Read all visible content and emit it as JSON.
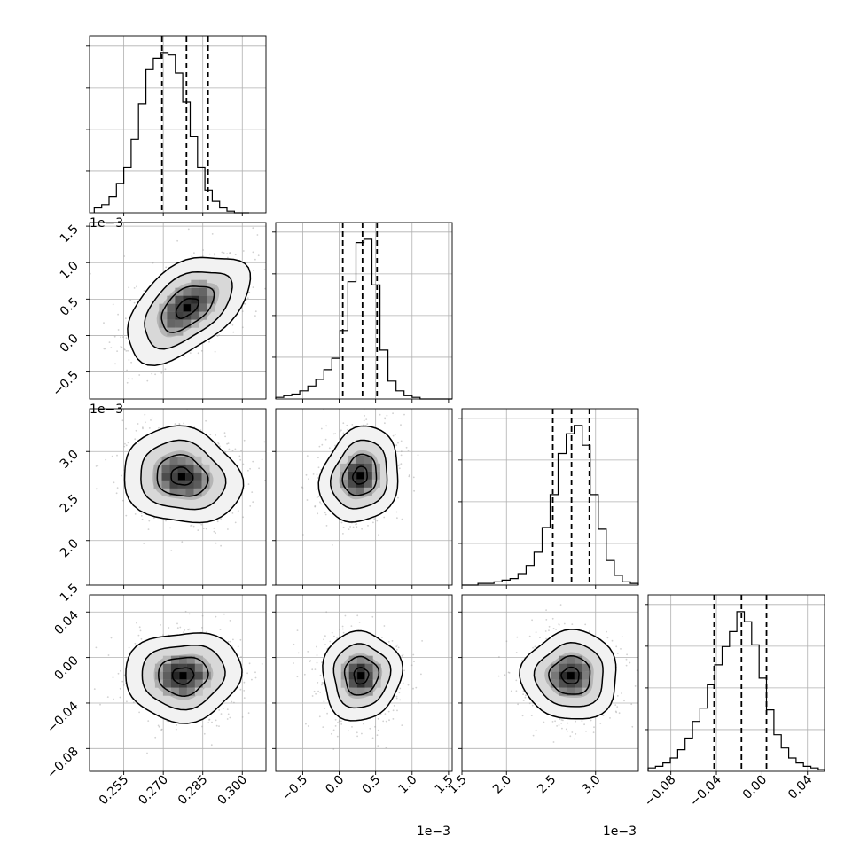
{
  "chart_data": {
    "type": "corner",
    "grid": true,
    "parameters": [
      {
        "range": [
          0.242,
          0.309
        ],
        "ticks": [
          0.255,
          0.27,
          0.285,
          0.3
        ],
        "tick_labels": [
          "0.255",
          "0.270",
          "0.285",
          "0.300"
        ],
        "offset_label": "",
        "quantiles": [
          0.2695,
          0.2788,
          0.287
        ],
        "bins": [
          0.2438,
          0.2466,
          0.2494,
          0.2522,
          0.255,
          0.2578,
          0.2606,
          0.2634,
          0.2662,
          0.269,
          0.2718,
          0.2746,
          0.2774,
          0.2802,
          0.283,
          0.2858,
          0.2886,
          0.2914,
          0.2942,
          0.297,
          0.2998,
          0.3026
        ],
        "hist": [
          3,
          5,
          10,
          18,
          28,
          45,
          67,
          88,
          95,
          98,
          97,
          86,
          68,
          47,
          28,
          14,
          7,
          3,
          1,
          0,
          0
        ]
      },
      {
        "range": [
          -0.87,
          1.55
        ],
        "ticks": [
          -0.5,
          0.0,
          0.5,
          1.0,
          1.5
        ],
        "tick_labels": [
          "−0.5",
          "0.0",
          "0.5",
          "1.0",
          "1.5"
        ],
        "offset_label": "1e−3",
        "quantiles": [
          0.05,
          0.32,
          0.52
        ],
        "bins": [
          -0.87,
          -0.76,
          -0.65,
          -0.54,
          -0.43,
          -0.32,
          -0.21,
          -0.1,
          0.01,
          0.12,
          0.23,
          0.34,
          0.45,
          0.56,
          0.67,
          0.78,
          0.89,
          1.0,
          1.11,
          1.22,
          1.33,
          1.44,
          1.55
        ],
        "hist": [
          1,
          2,
          3,
          5,
          8,
          12,
          18,
          25,
          42,
          72,
          96,
          98,
          70,
          30,
          11,
          5,
          2,
          1,
          0,
          0,
          0,
          0
        ]
      },
      {
        "range": [
          1.5,
          3.48
        ],
        "ticks": [
          1.5,
          2.0,
          2.5,
          3.0
        ],
        "tick_labels": [
          "1.5",
          "2.0",
          "2.5",
          "3.0"
        ],
        "offset_label": "1e−3",
        "quantiles": [
          2.52,
          2.73,
          2.93
        ],
        "bins": [
          1.5,
          1.59,
          1.68,
          1.77,
          1.86,
          1.95,
          2.04,
          2.13,
          2.22,
          2.31,
          2.4,
          2.49,
          2.58,
          2.67,
          2.76,
          2.85,
          2.94,
          3.03,
          3.12,
          3.21,
          3.3,
          3.39,
          3.48
        ],
        "hist": [
          0,
          0,
          1,
          1,
          2,
          3,
          4,
          7,
          12,
          20,
          35,
          55,
          80,
          92,
          97,
          85,
          55,
          34,
          15,
          6,
          2,
          1
        ]
      },
      {
        "range": [
          -0.1,
          0.055
        ],
        "ticks": [
          -0.08,
          -0.04,
          0.0,
          0.04
        ],
        "tick_labels": [
          "−0.08",
          "−0.04",
          "0.00",
          "0.04"
        ],
        "offset_label": "",
        "quantiles": [
          -0.042,
          -0.018,
          0.004
        ],
        "bins": [
          -0.1,
          -0.0935,
          -0.087,
          -0.0805,
          -0.074,
          -0.0675,
          -0.061,
          -0.0545,
          -0.048,
          -0.0415,
          -0.035,
          -0.0285,
          -0.022,
          -0.0155,
          -0.009,
          -0.0025,
          0.004,
          0.0105,
          0.017,
          0.0235,
          0.03,
          0.0365,
          0.043,
          0.0495,
          0.055
        ],
        "hist": [
          2,
          3,
          5,
          8,
          13,
          20,
          30,
          38,
          52,
          64,
          75,
          84,
          96,
          90,
          76,
          56,
          37,
          22,
          14,
          8,
          5,
          3,
          2,
          1
        ]
      }
    ],
    "pairs": [
      {
        "row": 1,
        "col": 0,
        "center": [
          0.279,
          0.38
        ],
        "sx": 0.0095,
        "sy": 0.3,
        "rho": 0.5
      },
      {
        "row": 2,
        "col": 0,
        "center": [
          0.277,
          2.72
        ],
        "sx": 0.0092,
        "sy": 0.22,
        "rho": -0.12
      },
      {
        "row": 2,
        "col": 1,
        "center": [
          0.29,
          2.73
        ],
        "sx": 0.22,
        "sy": 0.22,
        "rho": 0.15
      },
      {
        "row": 3,
        "col": 0,
        "center": [
          0.2775,
          -0.016
        ],
        "sx": 0.009,
        "sy": 0.016,
        "rho": 0.05
      },
      {
        "row": 3,
        "col": 1,
        "center": [
          0.3,
          -0.016
        ],
        "sx": 0.22,
        "sy": 0.016,
        "rho": 0.03
      },
      {
        "row": 3,
        "col": 2,
        "center": [
          2.72,
          -0.016
        ],
        "sx": 0.22,
        "sy": 0.016,
        "rho": 0.0
      }
    ]
  }
}
